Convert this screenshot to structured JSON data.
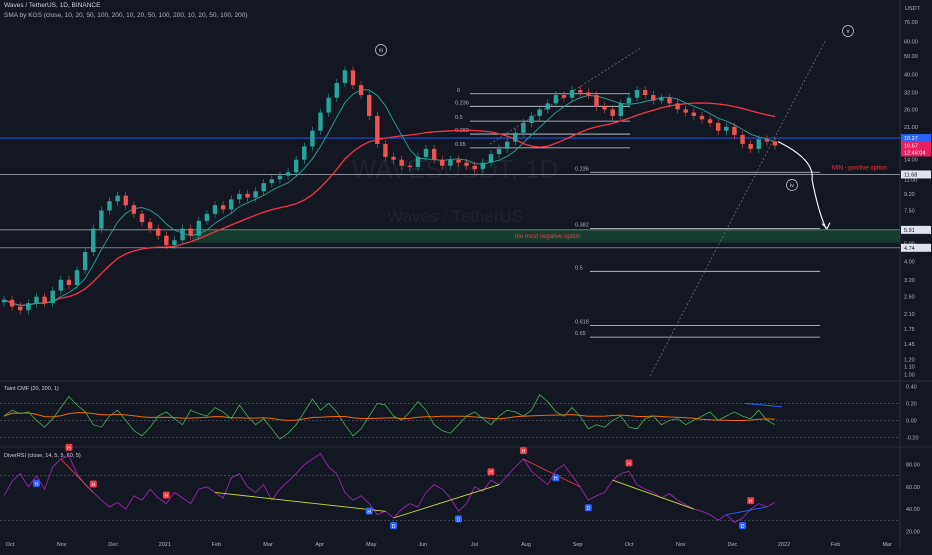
{
  "header": {
    "symbol_line": "Waves / TetherUS, 1D, BINANCE",
    "indicator_line": "SMA by KGS (close, 10, 20, 50, 100, 200, 10, 20, 50, 100, 200, 10, 20, 50, 100, 200)",
    "currency": "USDT"
  },
  "watermark": {
    "ticker": "WAVESUSDT, 1D",
    "name": "Waves / TetherUS"
  },
  "chart_data": [
    {
      "type": "line",
      "panel": "price",
      "scale": "log",
      "x_axis_labels": [
        "Oct",
        "Nov",
        "Dec",
        "2021",
        "Feb",
        "Mar",
        "Apr",
        "May",
        "Jun",
        "Jul",
        "Aug",
        "Sep",
        "Oct",
        "Nov",
        "Dec",
        "2022",
        "Feb",
        "Mar"
      ],
      "y_ticks": [
        1.0,
        1.1,
        1.2,
        1.45,
        1.75,
        2.1,
        2.6,
        3.2,
        4.0,
        5.0,
        6.0,
        7.5,
        9.2,
        11.0,
        14.0,
        17.0,
        21.0,
        26.0,
        32.0,
        40.0,
        50.0,
        60.0,
        76.0
      ],
      "ylim": [
        0.98,
        95
      ],
      "price_tags": [
        {
          "value": "18.27",
          "color": "#2962ff"
        },
        {
          "value": "16.67",
          "color": "#e91e63"
        },
        {
          "value": "12:46:04",
          "color": "#e91e63"
        },
        {
          "value": "11.68",
          "color": "#b2b5be"
        },
        {
          "value": "5.91",
          "color": "#b2b5be"
        },
        {
          "value": "4.74",
          "color": "#b2b5be"
        }
      ],
      "series": [
        {
          "name": "close",
          "values": [
            2.5,
            2.3,
            2.2,
            2.4,
            2.6,
            2.4,
            2.8,
            3.2,
            3.0,
            3.6,
            4.5,
            6.0,
            7.5,
            8.4,
            9.0,
            8.0,
            7.2,
            6.5,
            6.0,
            5.5,
            4.9,
            5.2,
            6.0,
            5.5,
            6.6,
            7.2,
            8.0,
            7.6,
            8.6,
            9.2,
            8.8,
            9.5,
            10.5,
            11.0,
            11.5,
            12.0,
            14.0,
            16.5,
            20.0,
            25.0,
            30.0,
            36.0,
            42.0,
            35.0,
            31.0,
            24.0,
            17.0,
            14.5,
            14.0,
            13.0,
            12.8,
            14.5,
            16.0,
            14.0,
            13.0,
            14.0,
            13.5,
            13.0,
            12.5,
            13.5,
            15.0,
            16.0,
            17.5,
            19.5,
            22.0,
            24.0,
            26.0,
            28.0,
            31.0,
            30.0,
            33.0,
            32.0,
            31.0,
            27.0,
            26.0,
            24.0,
            28.0,
            30.0,
            33.0,
            31.0,
            29.0,
            30.0,
            28.0,
            26.0,
            25.0,
            24.0,
            23.0,
            22.0,
            20.0,
            21.0,
            19.0,
            17.0,
            16.0,
            18.0,
            17.5,
            16.67
          ]
        }
      ],
      "sma_short_color": "#26a69a",
      "sma_long_color": "#f23645",
      "fib_levels": [
        {
          "label": "0",
          "value": 31.5
        },
        {
          "label": "0.236",
          "value": 27.0
        },
        {
          "label": "0.5",
          "value": 22.5
        },
        {
          "label": "0.382",
          "value": 19.2
        },
        {
          "label": "0.65",
          "value": 16.2
        },
        {
          "label": "0.236",
          "value": 12.0
        },
        {
          "label": "0.382",
          "value": 6.0
        },
        {
          "label": "0.5",
          "value": 3.55
        },
        {
          "label": "0.618",
          "value": 1.82
        },
        {
          "label": "0.65",
          "value": 1.58
        }
      ],
      "annotations": {
        "wave_iii": "iii",
        "wave_iv": "iv",
        "wave_v": "v",
        "positive": "MIN - positive option",
        "negative": "the most negative option"
      }
    },
    {
      "type": "line",
      "panel": "cmf",
      "title": "Taint CMF (20, 200, 1)",
      "y_ticks": [
        0.4,
        0.2,
        0.0,
        -0.2
      ],
      "ylim": [
        -0.3,
        0.45
      ],
      "series": [
        {
          "name": "CMF",
          "values": [
            0.05,
            0.12,
            0.08,
            0.1,
            0.0,
            -0.08,
            0.02,
            0.15,
            0.28,
            0.18,
            0.1,
            -0.05,
            -0.08,
            0.05,
            0.12,
            0.0,
            -0.12,
            -0.18,
            -0.08,
            0.05,
            0.1,
            0.02,
            -0.05,
            0.12,
            0.08,
            0.05,
            0.15,
            0.1,
            0.02,
            0.18,
            0.05,
            -0.05,
            0.02,
            -0.1,
            -0.22,
            -0.15,
            -0.05,
            0.1,
            0.25,
            0.12,
            0.2,
            0.1,
            -0.05,
            -0.18,
            -0.1,
            0.05,
            0.2,
            0.18,
            0.05,
            0.0,
            0.1,
            0.22,
            0.12,
            -0.05,
            -0.12,
            -0.15,
            -0.05,
            0.05,
            0.1,
            0.02,
            -0.05,
            0.05,
            0.12,
            0.1,
            0.05,
            0.12,
            0.3,
            0.22,
            0.1,
            0.05,
            0.15,
            0.05,
            -0.1,
            -0.05,
            -0.08,
            0.0,
            0.05,
            -0.08,
            -0.1,
            0.02,
            0.05,
            -0.05,
            0.0,
            0.02,
            -0.05,
            0.0,
            0.05,
            0.1,
            0.0,
            0.05,
            0.1,
            0.05,
            0.02,
            0.12,
            0.0,
            -0.05
          ]
        }
      ]
    },
    {
      "type": "line",
      "panel": "rsi",
      "title": "DiverRSI (close, 14, 5, 5, 60, 5)",
      "y_ticks": [
        80.0,
        60.0,
        40.0,
        20.0
      ],
      "ylim": [
        14,
        95
      ],
      "series": [
        {
          "name": "RSI",
          "values": [
            52,
            65,
            72,
            60,
            70,
            58,
            78,
            85,
            88,
            72,
            62,
            55,
            48,
            42,
            46,
            40,
            52,
            48,
            58,
            50,
            45,
            55,
            50,
            45,
            58,
            60,
            55,
            50,
            68,
            72,
            60,
            55,
            62,
            48,
            58,
            65,
            72,
            80,
            85,
            90,
            78,
            72,
            55,
            48,
            52,
            45,
            35,
            38,
            32,
            40,
            45,
            42,
            55,
            62,
            58,
            50,
            38,
            45,
            60,
            56,
            66,
            62,
            70,
            78,
            85,
            74,
            68,
            62,
            75,
            80,
            70,
            60,
            48,
            52,
            55,
            66,
            72,
            74,
            62,
            58,
            55,
            50,
            54,
            48,
            44,
            40,
            38,
            35,
            30,
            35,
            28,
            32,
            40,
            45,
            42,
            46
          ]
        }
      ]
    }
  ]
}
